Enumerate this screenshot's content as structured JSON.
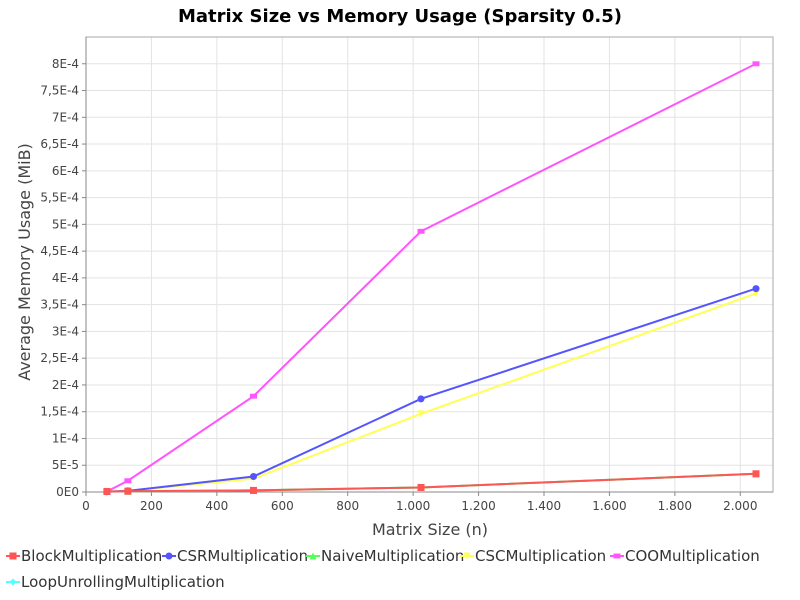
{
  "chart_data": {
    "type": "line",
    "title": "Matrix Size vs Memory Usage (Sparsity 0.5)",
    "xlabel": "Matrix Size (n)",
    "ylabel": "Average Memory Usage (MiB)",
    "xlim": [
      0,
      2100
    ],
    "ylim": [
      0,
      0.00085
    ],
    "x_ticks": [
      0,
      200,
      400,
      600,
      800,
      1000,
      1200,
      1400,
      1600,
      1800,
      2000
    ],
    "x_tick_labels": [
      "0",
      "200",
      "400",
      "600",
      "800",
      "1.000",
      "1.200",
      "1.400",
      "1.600",
      "1.800",
      "2.000"
    ],
    "y_ticks": [
      0,
      5e-05,
      0.0001,
      0.00015,
      0.0002,
      0.00025,
      0.0003,
      0.00035,
      0.0004,
      0.00045,
      0.0005,
      0.00055,
      0.0006,
      0.00065,
      0.0007,
      0.00075,
      0.0008
    ],
    "y_tick_labels": [
      "0E0",
      "5E-5",
      "1E-4",
      "1,5E-4",
      "2E-4",
      "2,5E-4",
      "3E-4",
      "3,5E-4",
      "4E-4",
      "4,5E-4",
      "5E-4",
      "5,5E-4",
      "6E-4",
      "6,5E-4",
      "7E-4",
      "7,5E-4",
      "8E-4"
    ],
    "grid": true,
    "legend_position": "bottom",
    "x": [
      64,
      128,
      512,
      1024,
      2048
    ],
    "series": [
      {
        "name": "BlockMultiplication",
        "color": "#ff5555",
        "marker": "square",
        "values": [
          1e-06,
          1.5e-06,
          3e-06,
          8.5e-06,
          3.4e-05
        ]
      },
      {
        "name": "CSRMultiplication",
        "color": "#5555ff",
        "marker": "circle",
        "values": [
          5e-07,
          2e-06,
          2.9e-05,
          0.000174,
          0.00038
        ]
      },
      {
        "name": "NaiveMultiplication",
        "color": "#55ff55",
        "marker": "triangle-up",
        "values": [
          1e-06,
          1.5e-06,
          3e-06,
          8.5e-06,
          3.4e-05
        ]
      },
      {
        "name": "CSCMultiplication",
        "color": "#ffff55",
        "marker": "triangle-down",
        "values": [
          5e-07,
          2e-06,
          2.5e-05,
          0.000146,
          0.000371
        ]
      },
      {
        "name": "COOMultiplication",
        "color": "#ff55ff",
        "marker": "rect",
        "values": [
          1e-06,
          2.1e-05,
          0.000179,
          0.000487,
          0.0008
        ]
      },
      {
        "name": "LoopUnrollingMultiplication",
        "color": "#55ffff",
        "marker": "diamond",
        "values": [
          1e-06,
          1.5e-06,
          3e-06,
          8.5e-06,
          3.4e-05
        ]
      }
    ]
  }
}
